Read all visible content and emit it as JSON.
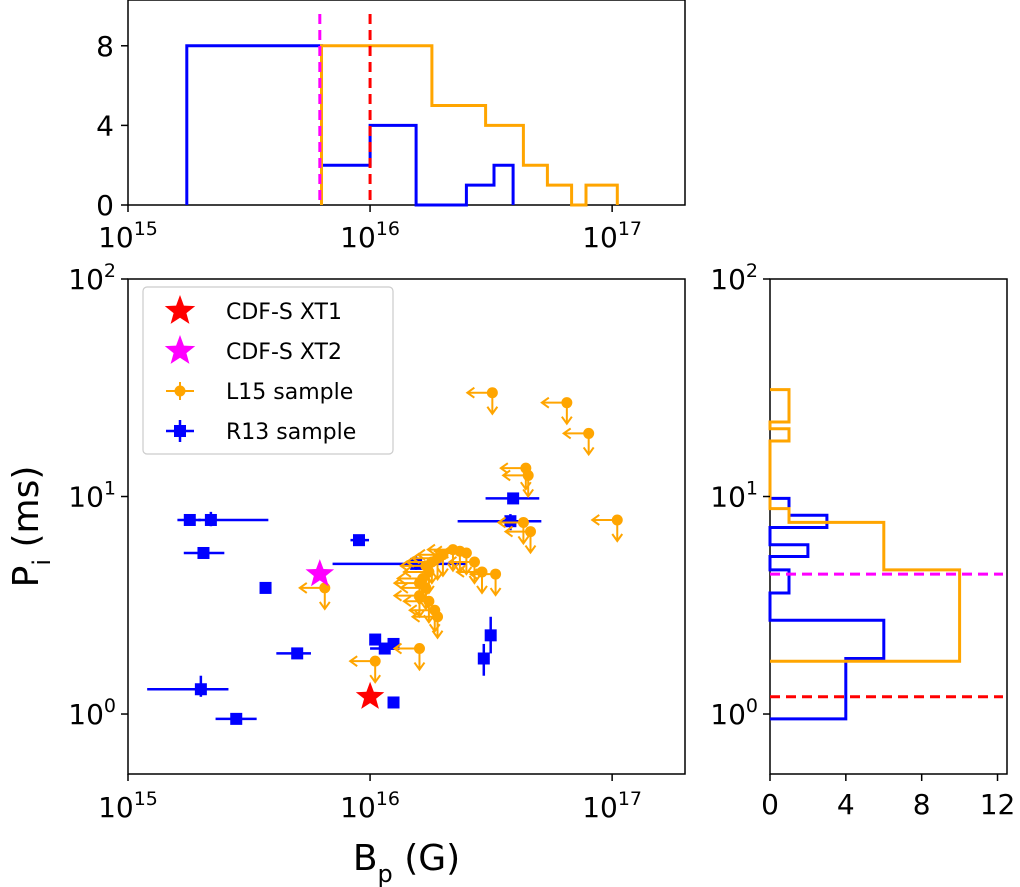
{
  "colors": {
    "blue": "#0000ff",
    "orange": "#ffa500",
    "red": "#ff0000",
    "magenta": "#ff00ff",
    "axis": "#000000"
  },
  "chart_data": [
    {
      "id": "top-hist",
      "type": "histogram",
      "x_scale": "log",
      "xlim": [
        1000000000000000.0,
        2e+16
      ],
      "xlim_note": "log10 range 15 to 17.3",
      "ylim": [
        0,
        10.3
      ],
      "xticks": [
        {
          "value": 1000000000000000.0,
          "base": "10",
          "exp": "15"
        },
        {
          "value": 1e+16,
          "base": "10",
          "exp": "16"
        },
        {
          "value": 1e+17,
          "base": "10",
          "exp": "17"
        }
      ],
      "yticks": [
        "0",
        "4",
        "8"
      ],
      "series": [
        {
          "name": "",
          "color": "blue",
          "edges": [
            1750000000000000.0,
            6300000000000000.0,
            1e+16,
            1.55e+16,
            2.5e+16,
            3.25e+16,
            3.9e+16
          ],
          "counts": [
            8,
            2,
            4,
            0,
            1,
            2
          ]
        },
        {
          "name": "",
          "color": "orange",
          "edges": [
            6300000000000000.0,
            1.8e+16,
            3e+16,
            4.3e+16,
            5.4e+16,
            6.8e+16,
            7.8e+16,
            1.05e+17
          ],
          "counts": [
            8,
            5,
            4,
            2,
            1,
            0,
            1
          ]
        }
      ],
      "vlines": [
        {
          "color": "magenta",
          "x": 6200000000000000.0
        },
        {
          "color": "red",
          "x": 1e+16
        }
      ]
    },
    {
      "id": "scatter",
      "type": "scatter",
      "x_scale": "log",
      "y_scale": "log",
      "xlabel": {
        "base": "B",
        "sub": "p",
        "rest": " (G)"
      },
      "ylabel": {
        "base": "P",
        "sub": "i",
        "rest": " (ms)"
      },
      "xticks": [
        {
          "value": 1000000000000000.0,
          "base": "10",
          "exp": "15"
        },
        {
          "value": 1e+16,
          "base": "10",
          "exp": "16"
        },
        {
          "value": 1e+17,
          "base": "10",
          "exp": "17"
        }
      ],
      "yticks": [
        {
          "value": 1,
          "base": "10",
          "exp": "0"
        },
        {
          "value": 10,
          "base": "10",
          "exp": "1"
        },
        {
          "value": 100,
          "base": "10",
          "exp": "2"
        }
      ],
      "legend": {
        "placement": "upper-left",
        "entries": [
          {
            "label": "CDF-S XT1",
            "marker": "star",
            "color": "red"
          },
          {
            "label": "CDF-S XT2",
            "marker": "star",
            "color": "magenta"
          },
          {
            "label": "L15 sample",
            "marker": "errorbar-dot",
            "color": "orange"
          },
          {
            "label": "R13 sample",
            "marker": "errorbar-square",
            "color": "blue"
          }
        ]
      },
      "stars": [
        {
          "name": "CDF-S XT1",
          "color": "red",
          "B": 1e+16,
          "P": 1.2
        },
        {
          "name": "CDF-S XT2",
          "color": "magenta",
          "B": 6200000000000000.0,
          "P": 4.4
        }
      ],
      "r13": [
        {
          "B": 1800000000000000.0,
          "P": 7.8,
          "xerr": [
            1600000000000000.0,
            2000000000000000.0
          ]
        },
        {
          "B": 2200000000000000.0,
          "P": 7.8,
          "xerr": [
            1950000000000000.0,
            3800000000000000.0
          ],
          "yerr": [
            7.3,
            8.5
          ]
        },
        {
          "B": 2050000000000000.0,
          "P": 5.5,
          "xerr": [
            1700000000000000.0,
            2500000000000000.0
          ]
        },
        {
          "B": 3700000000000000.0,
          "P": 3.8
        },
        {
          "B": 2000000000000000.0,
          "P": 1.3,
          "xerr": [
            1200000000000000.0,
            2600000000000000.0
          ],
          "yerr": [
            1.2,
            1.5
          ]
        },
        {
          "B": 2800000000000000.0,
          "P": 0.95,
          "xerr": [
            2300000000000000.0,
            3400000000000000.0
          ]
        },
        {
          "B": 5000000000000000.0,
          "P": 1.9,
          "xerr": [
            4100000000000000.0,
            5700000000000000.0
          ]
        },
        {
          "B": 9000000000000000.0,
          "P": 6.3,
          "xerr": [
            8300000000000000.0,
            9900000000000000.0
          ]
        },
        {
          "B": 1.55e+16,
          "P": 4.9,
          "xerr": [
            7000000000000000.0,
            2.5e+16
          ],
          "yerr": [
            4.6,
            5.3
          ]
        },
        {
          "B": 1.05e+16,
          "P": 2.2
        },
        {
          "B": 1.15e+16,
          "P": 2.0,
          "xerr": [
            1e+16,
            1.3e+16
          ]
        },
        {
          "B": 1.25e+16,
          "P": 2.1
        },
        {
          "B": 1.25e+16,
          "P": 1.13
        },
        {
          "B": 2.95e+16,
          "P": 1.8,
          "yerr": [
            1.5,
            2.1
          ]
        },
        {
          "B": 3.15e+16,
          "P": 2.3,
          "yerr": [
            1.9,
            2.8
          ]
        },
        {
          "B": 3.9e+16,
          "P": 9.8,
          "xerr": [
            3e+16,
            5e+16
          ]
        },
        {
          "B": 3.8e+16,
          "P": 7.7,
          "xerr": [
            2.3e+16,
            5.1e+16
          ],
          "yerr": [
            7.0,
            8.3
          ]
        }
      ],
      "l15": [
        {
          "B": 3.2e+16,
          "P": 30
        },
        {
          "B": 6.5e+16,
          "P": 27
        },
        {
          "B": 8e+16,
          "P": 19.5
        },
        {
          "B": 1.05e+17,
          "P": 7.8
        },
        {
          "B": 4.4e+16,
          "P": 13.5
        },
        {
          "B": 4.5e+16,
          "P": 12.5
        },
        {
          "B": 4.6e+16,
          "P": 6.9
        },
        {
          "B": 4.3e+16,
          "P": 7.6
        },
        {
          "B": 2.7e+16,
          "P": 5.0
        },
        {
          "B": 2.5e+16,
          "P": 5.5
        },
        {
          "B": 2.35e+16,
          "P": 5.6
        },
        {
          "B": 2.2e+16,
          "P": 5.7
        },
        {
          "B": 2e+16,
          "P": 5.4
        },
        {
          "B": 1.9e+16,
          "P": 5.2
        },
        {
          "B": 1.8e+16,
          "P": 5.0
        },
        {
          "B": 1.7e+16,
          "P": 4.8
        },
        {
          "B": 1.75e+16,
          "P": 4.5
        },
        {
          "B": 1.65e+16,
          "P": 4.2
        },
        {
          "B": 1.7e+16,
          "P": 3.8
        },
        {
          "B": 1.6e+16,
          "P": 3.5
        },
        {
          "B": 1.75e+16,
          "P": 3.3
        },
        {
          "B": 1.85e+16,
          "P": 3.0
        },
        {
          "B": 1.9e+16,
          "P": 2.8
        },
        {
          "B": 1.6e+16,
          "P": 4.0
        },
        {
          "B": 3.3e+16,
          "P": 4.4
        },
        {
          "B": 2.9e+16,
          "P": 4.5
        },
        {
          "B": 6500000000000000.0,
          "P": 3.8
        },
        {
          "B": 1.6e+16,
          "P": 2.0
        },
        {
          "B": 1.05e+16,
          "P": 1.75
        }
      ]
    },
    {
      "id": "right-hist",
      "type": "histogram",
      "orientation": "horizontal",
      "y_scale": "log",
      "xlim": [
        0,
        12.5
      ],
      "xticks": [
        "0",
        "4",
        "8",
        "12"
      ],
      "yticks": [
        {
          "value": 1,
          "base": "10",
          "exp": "0"
        },
        {
          "value": 10,
          "base": "10",
          "exp": "1"
        },
        {
          "value": 100,
          "base": "10",
          "exp": "2"
        }
      ],
      "series": [
        {
          "name": "",
          "color": "blue",
          "edges": [
            0.95,
            1.8,
            2.7,
            3.6,
            4.6,
            5.3,
            6.0,
            7.2,
            8.2,
            9.0,
            9.8
          ],
          "counts": [
            4,
            6,
            0,
            1,
            0,
            2,
            0,
            3,
            1,
            1
          ]
        },
        {
          "name": "",
          "color": "orange",
          "edges": [
            1.75,
            4.6,
            7.6,
            8.8,
            18.0,
            20.5,
            22.0,
            25.0,
            31.0
          ],
          "counts": [
            10,
            6,
            1,
            0,
            1,
            0,
            1,
            1
          ]
        }
      ],
      "hlines": [
        {
          "color": "magenta",
          "y": 4.4
        },
        {
          "color": "red",
          "y": 1.2
        }
      ]
    }
  ]
}
